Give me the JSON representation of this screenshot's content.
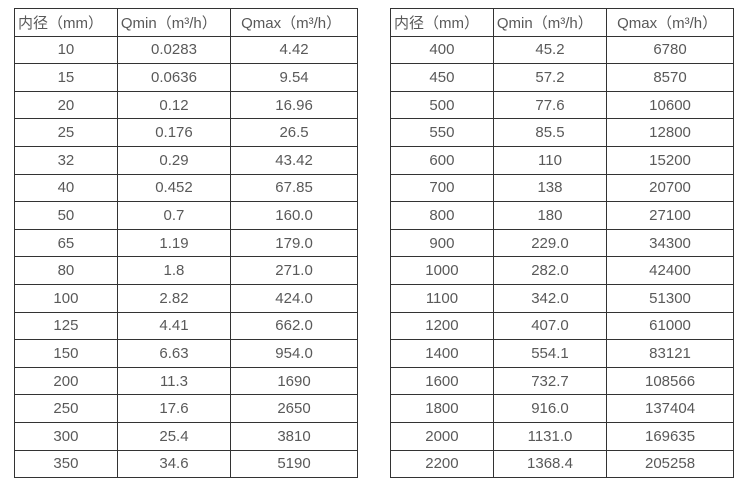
{
  "colors": {
    "border": "#333333",
    "text": "#595959",
    "background": "#ffffff"
  },
  "tables": [
    {
      "name": "flow-table-small-diameters",
      "headers": [
        "内径（mm）",
        "Qmin（m³/h）",
        "Qmax（m³/h）"
      ],
      "rows": [
        [
          "10",
          "0.0283",
          "4.42"
        ],
        [
          "15",
          "0.0636",
          "9.54"
        ],
        [
          "20",
          "0.12",
          "16.96"
        ],
        [
          "25",
          "0.176",
          "26.5"
        ],
        [
          "32",
          "0.29",
          "43.42"
        ],
        [
          "40",
          "0.452",
          "67.85"
        ],
        [
          "50",
          "0.7",
          "160.0"
        ],
        [
          "65",
          "1.19",
          "179.0"
        ],
        [
          "80",
          "1.8",
          "271.0"
        ],
        [
          "100",
          "2.82",
          "424.0"
        ],
        [
          "125",
          "4.41",
          "662.0"
        ],
        [
          "150",
          "6.63",
          "954.0"
        ],
        [
          "200",
          "11.3",
          "1690"
        ],
        [
          "250",
          "17.6",
          "2650"
        ],
        [
          "300",
          "25.4",
          "3810"
        ],
        [
          "350",
          "34.6",
          "5190"
        ]
      ]
    },
    {
      "name": "flow-table-large-diameters",
      "headers": [
        "内径（mm）",
        "Qmin（m³/h）",
        "Qmax（m³/h）"
      ],
      "rows": [
        [
          "400",
          "45.2",
          "6780"
        ],
        [
          "450",
          "57.2",
          "8570"
        ],
        [
          "500",
          "77.6",
          "10600"
        ],
        [
          "550",
          "85.5",
          "12800"
        ],
        [
          "600",
          "110",
          "15200"
        ],
        [
          "700",
          "138",
          "20700"
        ],
        [
          "800",
          "180",
          "27100"
        ],
        [
          "900",
          "229.0",
          "34300"
        ],
        [
          "1000",
          "282.0",
          "42400"
        ],
        [
          "1100",
          "342.0",
          "51300"
        ],
        [
          "1200",
          "407.0",
          "61000"
        ],
        [
          "1400",
          "554.1",
          "83121"
        ],
        [
          "1600",
          "732.7",
          "108566"
        ],
        [
          "1800",
          "916.0",
          "137404"
        ],
        [
          "2000",
          "1131.0",
          "169635"
        ],
        [
          "2200",
          "1368.4",
          "205258"
        ]
      ]
    }
  ]
}
